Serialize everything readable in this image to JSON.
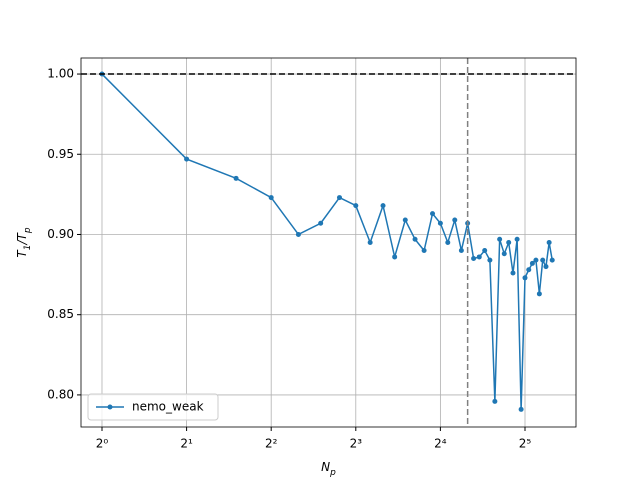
{
  "chart_data": {
    "type": "line",
    "x_label": "N_p",
    "y_label": "T_1/T_p",
    "x": [
      1,
      2,
      3,
      4,
      5,
      6,
      7,
      8,
      9,
      10,
      11,
      12,
      13,
      14,
      15,
      16,
      17,
      18,
      19,
      20,
      21,
      22,
      23,
      24,
      25,
      26,
      27,
      28,
      29,
      30,
      31,
      32,
      33,
      34,
      35,
      36,
      37,
      38,
      39,
      40
    ],
    "series": [
      {
        "name": "nemo_weak",
        "color": "#1f77b4",
        "values": [
          1.0,
          0.947,
          0.935,
          0.923,
          0.9,
          0.907,
          0.923,
          0.918,
          0.895,
          0.918,
          0.886,
          0.909,
          0.897,
          0.89,
          0.913,
          0.907,
          0.895,
          0.909,
          0.89,
          0.907,
          0.885,
          0.886,
          0.89,
          0.884,
          0.796,
          0.897,
          0.888,
          0.895,
          0.876,
          0.897,
          0.791,
          0.873,
          0.878,
          0.882,
          0.884,
          0.863,
          0.884,
          0.88,
          0.895,
          0.884
        ]
      }
    ],
    "xscale": "log2",
    "xlim": [
      0.842,
      48.6
    ],
    "xticks": [
      {
        "value": 1,
        "label": "2⁰"
      },
      {
        "value": 2,
        "label": "2¹"
      },
      {
        "value": 4,
        "label": "2²"
      },
      {
        "value": 8,
        "label": "2³"
      },
      {
        "value": 16,
        "label": "2⁴"
      },
      {
        "value": 32,
        "label": "2⁵"
      }
    ],
    "ylim": [
      0.78,
      1.01
    ],
    "yticks": [
      {
        "value": 0.8,
        "label": "0.80"
      },
      0.85,
      {
        "value": 0.9,
        "label": "0.90"
      },
      0.95,
      {
        "value": 1.0,
        "label": "1.00"
      }
    ],
    "hline": 1.0,
    "hline_color": "#000000",
    "vline": 20,
    "vline_color": "#808080",
    "grid": true,
    "legend": "lower left"
  }
}
